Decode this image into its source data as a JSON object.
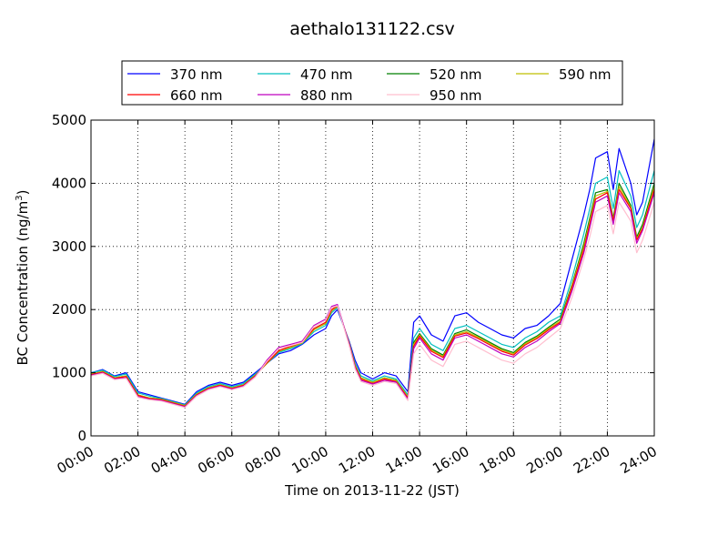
{
  "chart_data": {
    "type": "line",
    "title": "aethalo131122.csv",
    "xlabel": "Time on 2013-11-22 (JST)",
    "ylabel_main": "BC Concentration (ng/m",
    "ylabel_sup": "3",
    "ylabel_end": ")",
    "xlim": [
      0,
      24
    ],
    "ylim": [
      0,
      5000
    ],
    "grid": true,
    "legend_position": "top",
    "x_ticks": [
      {
        "value": 0,
        "label": "00:00"
      },
      {
        "value": 2,
        "label": "02:00"
      },
      {
        "value": 4,
        "label": "04:00"
      },
      {
        "value": 6,
        "label": "06:00"
      },
      {
        "value": 8,
        "label": "08:00"
      },
      {
        "value": 10,
        "label": "10:00"
      },
      {
        "value": 12,
        "label": "12:00"
      },
      {
        "value": 14,
        "label": "14:00"
      },
      {
        "value": 16,
        "label": "16:00"
      },
      {
        "value": 18,
        "label": "18:00"
      },
      {
        "value": 20,
        "label": "20:00"
      },
      {
        "value": 22,
        "label": "22:00"
      },
      {
        "value": 24,
        "label": "24:00"
      }
    ],
    "y_ticks": [
      {
        "value": 0,
        "label": "0"
      },
      {
        "value": 1000,
        "label": "1000"
      },
      {
        "value": 2000,
        "label": "2000"
      },
      {
        "value": 3000,
        "label": "3000"
      },
      {
        "value": 4000,
        "label": "4000"
      },
      {
        "value": 5000,
        "label": "5000"
      }
    ],
    "x": [
      0,
      0.5,
      1,
      1.5,
      2,
      2.5,
      3,
      3.5,
      4,
      4.5,
      5,
      5.5,
      6,
      6.5,
      7,
      7.5,
      8,
      8.5,
      9,
      9.5,
      10,
      10.25,
      10.5,
      11,
      11.25,
      11.5,
      12,
      12.5,
      13,
      13.5,
      13.75,
      14,
      14.5,
      15,
      15.5,
      16,
      16.5,
      17,
      17.5,
      18,
      18.5,
      19,
      19.5,
      20,
      20.5,
      21,
      21.25,
      21.5,
      22,
      22.25,
      22.5,
      23,
      23.25,
      23.5,
      24
    ],
    "series": [
      {
        "name": "370 nm",
        "color": "#0000ff",
        "values": [
          1000,
          1050,
          950,
          1000,
          700,
          650,
          600,
          550,
          500,
          700,
          800,
          850,
          800,
          850,
          1000,
          1150,
          1300,
          1350,
          1450,
          1600,
          1700,
          1900,
          2000,
          1500,
          1200,
          1000,
          900,
          1000,
          950,
          700,
          1800,
          1900,
          1600,
          1500,
          1900,
          1950,
          1800,
          1700,
          1600,
          1550,
          1700,
          1750,
          1900,
          2100,
          2800,
          3500,
          3900,
          4400,
          4500,
          3900,
          4550,
          4000,
          3500,
          3700,
          4700
        ]
      },
      {
        "name": "470 nm",
        "color": "#00bfbf",
        "values": [
          1000,
          1040,
          940,
          980,
          680,
          630,
          590,
          540,
          490,
          680,
          780,
          830,
          780,
          830,
          980,
          1150,
          1320,
          1380,
          1460,
          1650,
          1750,
          1950,
          2030,
          1480,
          1150,
          950,
          870,
          950,
          900,
          650,
          1550,
          1700,
          1450,
          1350,
          1700,
          1750,
          1650,
          1550,
          1450,
          1400,
          1550,
          1650,
          1800,
          1900,
          2500,
          3200,
          3600,
          4000,
          4100,
          3600,
          4200,
          3800,
          3300,
          3500,
          4200
        ]
      },
      {
        "name": "520 nm",
        "color": "#007f00",
        "values": [
          980,
          1020,
          920,
          950,
          650,
          600,
          580,
          530,
          480,
          660,
          760,
          810,
          760,
          810,
          960,
          1150,
          1340,
          1400,
          1470,
          1680,
          1780,
          1980,
          2050,
          1470,
          1120,
          920,
          850,
          920,
          880,
          620,
          1480,
          1620,
          1380,
          1280,
          1620,
          1680,
          1580,
          1480,
          1380,
          1320,
          1480,
          1580,
          1720,
          1850,
          2400,
          3050,
          3450,
          3850,
          3900,
          3450,
          4000,
          3650,
          3150,
          3350,
          4000
        ]
      },
      {
        "name": "590 nm",
        "color": "#bfbf00",
        "values": [
          980,
          1020,
          920,
          950,
          650,
          600,
          580,
          530,
          480,
          660,
          760,
          810,
          760,
          810,
          960,
          1150,
          1340,
          1400,
          1470,
          1680,
          1780,
          1980,
          2050,
          1470,
          1120,
          920,
          850,
          920,
          880,
          620,
          1450,
          1600,
          1360,
          1260,
          1600,
          1650,
          1560,
          1460,
          1360,
          1300,
          1460,
          1560,
          1700,
          1820,
          2380,
          3000,
          3400,
          3800,
          3870,
          3420,
          3950,
          3620,
          3120,
          3300,
          3950
        ]
      },
      {
        "name": "660 nm",
        "color": "#ff0000",
        "values": [
          970,
          1010,
          910,
          940,
          640,
          590,
          570,
          520,
          470,
          650,
          750,
          800,
          750,
          800,
          950,
          1160,
          1350,
          1420,
          1480,
          1700,
          1800,
          2000,
          2060,
          1460,
          1100,
          900,
          830,
          900,
          860,
          600,
          1420,
          1580,
          1340,
          1240,
          1580,
          1630,
          1540,
          1440,
          1340,
          1280,
          1440,
          1540,
          1680,
          1800,
          2350,
          2950,
          3350,
          3750,
          3850,
          3400,
          3900,
          3600,
          3100,
          3280,
          3900
        ]
      },
      {
        "name": "880 nm",
        "color": "#bf00bf",
        "values": [
          960,
          1000,
          900,
          920,
          620,
          580,
          560,
          510,
          460,
          640,
          740,
          790,
          740,
          790,
          940,
          1200,
          1400,
          1450,
          1500,
          1750,
          1850,
          2050,
          2080,
          1450,
          1080,
          880,
          820,
          880,
          850,
          580,
          1380,
          1550,
          1300,
          1200,
          1550,
          1600,
          1500,
          1400,
          1300,
          1250,
          1400,
          1500,
          1650,
          1780,
          2300,
          2900,
          3300,
          3700,
          3800,
          3350,
          3850,
          3550,
          3050,
          3250,
          3850
        ]
      },
      {
        "name": "950 nm",
        "color": "#ffbfcf",
        "values": [
          950,
          990,
          890,
          910,
          610,
          570,
          550,
          500,
          450,
          630,
          730,
          780,
          730,
          780,
          930,
          1180,
          1380,
          1430,
          1480,
          1730,
          1830,
          2030,
          2060,
          1430,
          1060,
          860,
          800,
          860,
          830,
          560,
          1300,
          1450,
          1200,
          1100,
          1450,
          1500,
          1400,
          1300,
          1200,
          1150,
          1300,
          1400,
          1550,
          1700,
          2200,
          2800,
          3150,
          3550,
          3650,
          3200,
          3700,
          3400,
          2900,
          3100,
          3700
        ]
      }
    ]
  }
}
